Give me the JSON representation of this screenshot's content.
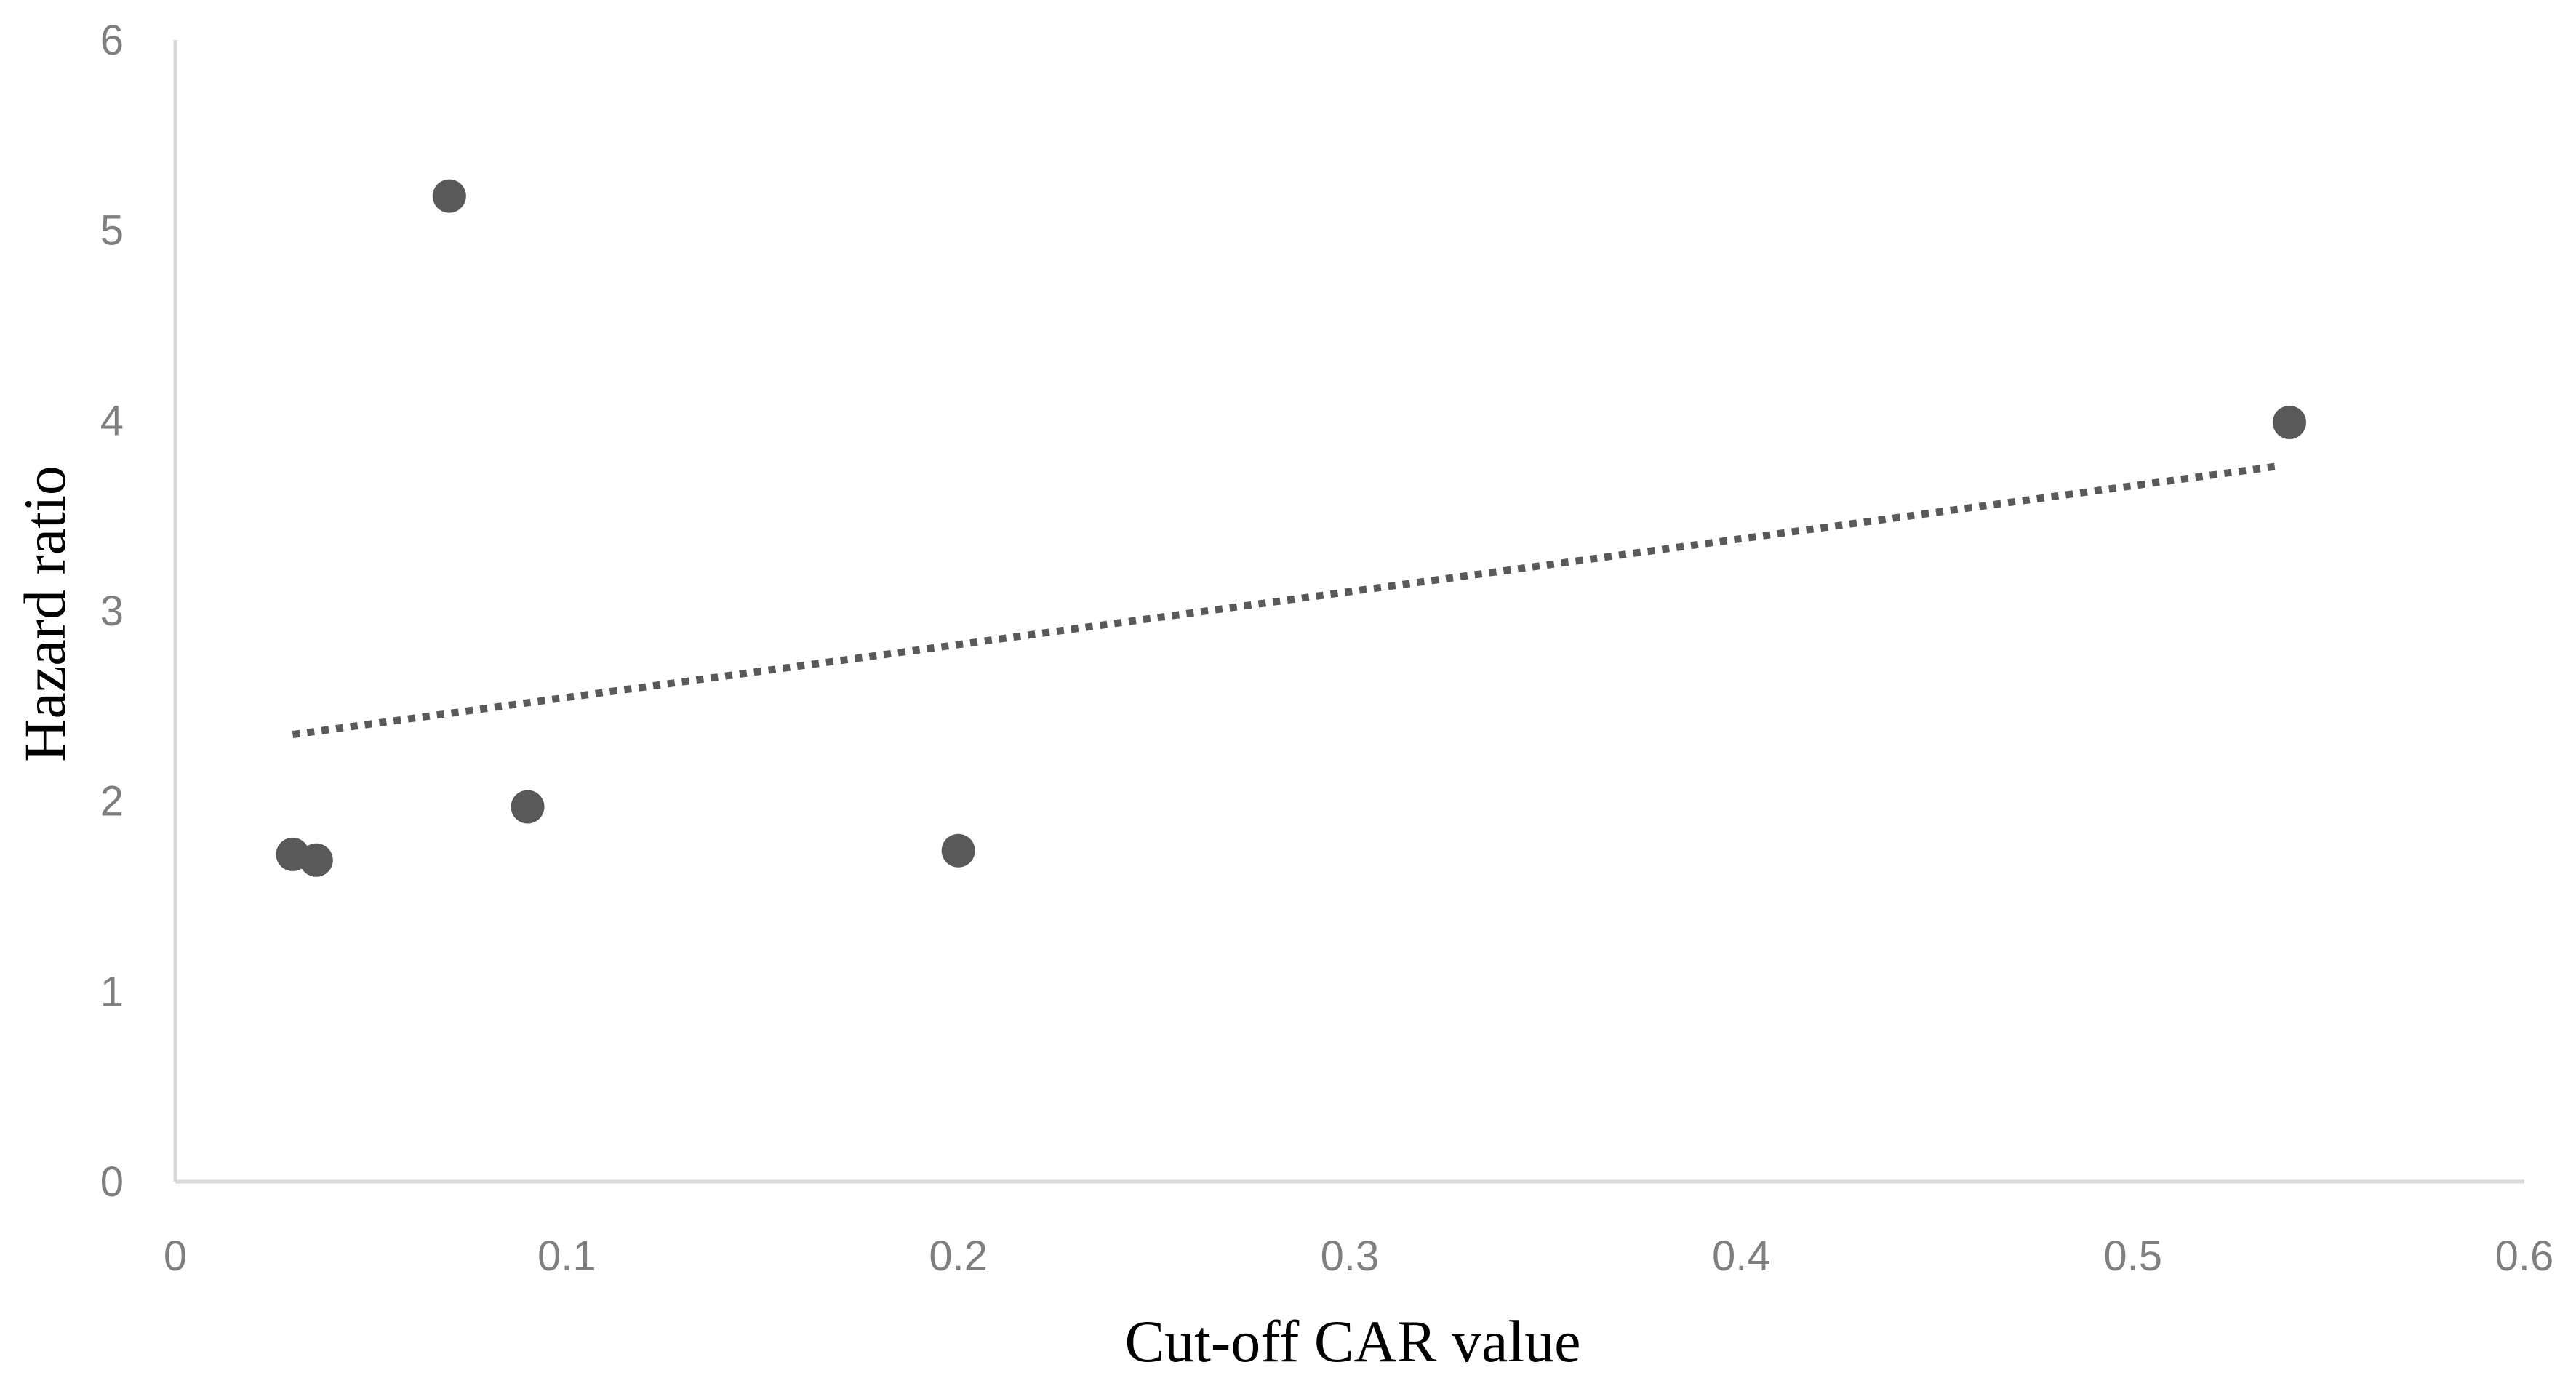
{
  "chart_data": {
    "type": "scatter",
    "title": "",
    "xlabel": "Cut-off CAR value",
    "ylabel": "Hazard ratio",
    "xlim": [
      0,
      0.6
    ],
    "ylim": [
      0,
      6
    ],
    "x_ticks": [
      "0",
      "0.1",
      "0.2",
      "0.3",
      "0.4",
      "0.5",
      "0.6"
    ],
    "y_ticks": [
      "0",
      "1",
      "2",
      "3",
      "4",
      "5",
      "6"
    ],
    "grid": false,
    "legend": "none",
    "series": [
      {
        "points": [
          {
            "x": 0.03,
            "y": 1.72
          },
          {
            "x": 0.036,
            "y": 1.69
          },
          {
            "x": 0.07,
            "y": 5.18
          },
          {
            "x": 0.09,
            "y": 1.97
          },
          {
            "x": 0.2,
            "y": 1.74
          },
          {
            "x": 0.54,
            "y": 3.99
          }
        ],
        "color": "#595959"
      }
    ],
    "trendline": {
      "style": "dotted",
      "type": "linear",
      "start": {
        "x": 0.03,
        "y": 2.35
      },
      "end": {
        "x": 0.537,
        "y": 3.76
      },
      "color": "#595959"
    },
    "axis_color": "#d9d9d9",
    "tick_label_color": "#7f7f7f"
  }
}
